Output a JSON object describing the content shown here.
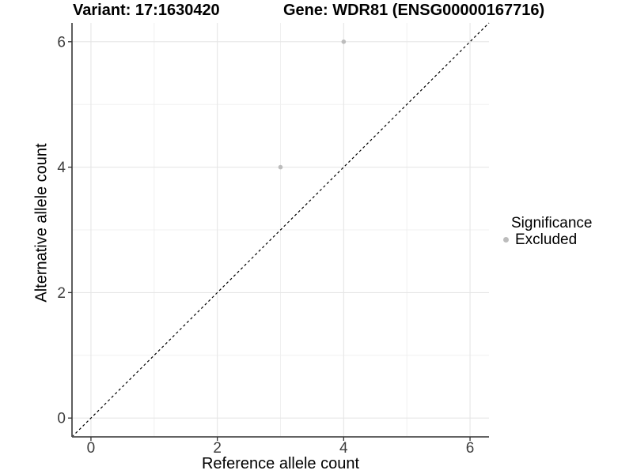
{
  "chart_data": {
    "type": "scatter",
    "title_parts": [
      "Variant: 17:1630420",
      "Gene: WDR81 (ENSG00000167716)"
    ],
    "xlabel": "Reference allele count",
    "ylabel": "Alternative allele count",
    "xlim": [
      -0.3,
      6.3
    ],
    "ylim": [
      -0.3,
      6.3
    ],
    "x_ticks": [
      0,
      2,
      4,
      6
    ],
    "y_ticks": [
      0,
      2,
      4,
      6
    ],
    "x_minor_ticks": [
      1,
      3,
      5
    ],
    "y_minor_ticks": [
      1,
      3,
      5
    ],
    "grid": "major and minor gridlines on",
    "legend_position": "right",
    "series": [
      {
        "name": "Excluded",
        "color": "#bcbcbc",
        "points": [
          [
            3,
            4
          ],
          [
            4,
            6
          ]
        ]
      }
    ],
    "reference_line": {
      "style": "dashed",
      "color": "#000000",
      "from": [
        -0.3,
        -0.3
      ],
      "to": [
        6.3,
        6.3
      ]
    },
    "legend": {
      "title": "Significance",
      "entries": [
        {
          "label": "Excluded",
          "color": "#bcbcbc"
        }
      ]
    },
    "colors": {
      "axis_line": "#4d4d4d",
      "tick_mark": "#333333",
      "grid_major": "#e6e6e6",
      "grid_minor": "#f0f0f0",
      "tick_label": "#3d3d3d"
    }
  }
}
